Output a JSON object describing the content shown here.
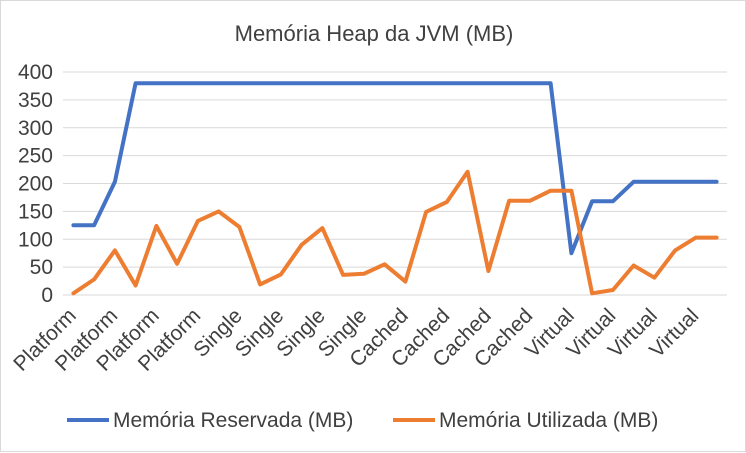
{
  "chart_data": {
    "type": "line",
    "title": "Memória Heap da JVM (MB)",
    "ylim": [
      0,
      400
    ],
    "yticks": [
      0,
      50,
      100,
      150,
      200,
      250,
      300,
      350,
      400
    ],
    "grid": true,
    "legend_position": "bottom",
    "categories": [
      "Platform",
      "Platform",
      "Platform",
      "Platform",
      "Platform",
      "Platform",
      "Platform",
      "Platform",
      "Single",
      "Single",
      "Single",
      "Single",
      "Single",
      "Single",
      "Single",
      "Single",
      "Cached",
      "Cached",
      "Cached",
      "Cached",
      "Cached",
      "Cached",
      "Cached",
      "Cached",
      "Virtual",
      "Virtual",
      "Virtual",
      "Virtual",
      "Virtual",
      "Virtual",
      "Virtual",
      "Virtual"
    ],
    "label_every": 2,
    "series": [
      {
        "name": "Memória Reservada (MB)",
        "color": "#4472C4",
        "values": [
          125,
          125,
          203,
          380,
          380,
          380,
          380,
          380,
          380,
          380,
          380,
          380,
          380,
          380,
          380,
          380,
          380,
          380,
          380,
          380,
          380,
          380,
          380,
          380,
          75,
          168,
          168,
          203,
          203,
          203,
          203,
          203
        ]
      },
      {
        "name": "Memória Utilizada (MB)",
        "color": "#ED7D31",
        "values": [
          3,
          28,
          80,
          17,
          124,
          56,
          133,
          150,
          122,
          19,
          37,
          90,
          120,
          36,
          38,
          55,
          24,
          149,
          167,
          221,
          43,
          169,
          169,
          187,
          187,
          3,
          9,
          53,
          31,
          80,
          103,
          103
        ]
      }
    ]
  }
}
